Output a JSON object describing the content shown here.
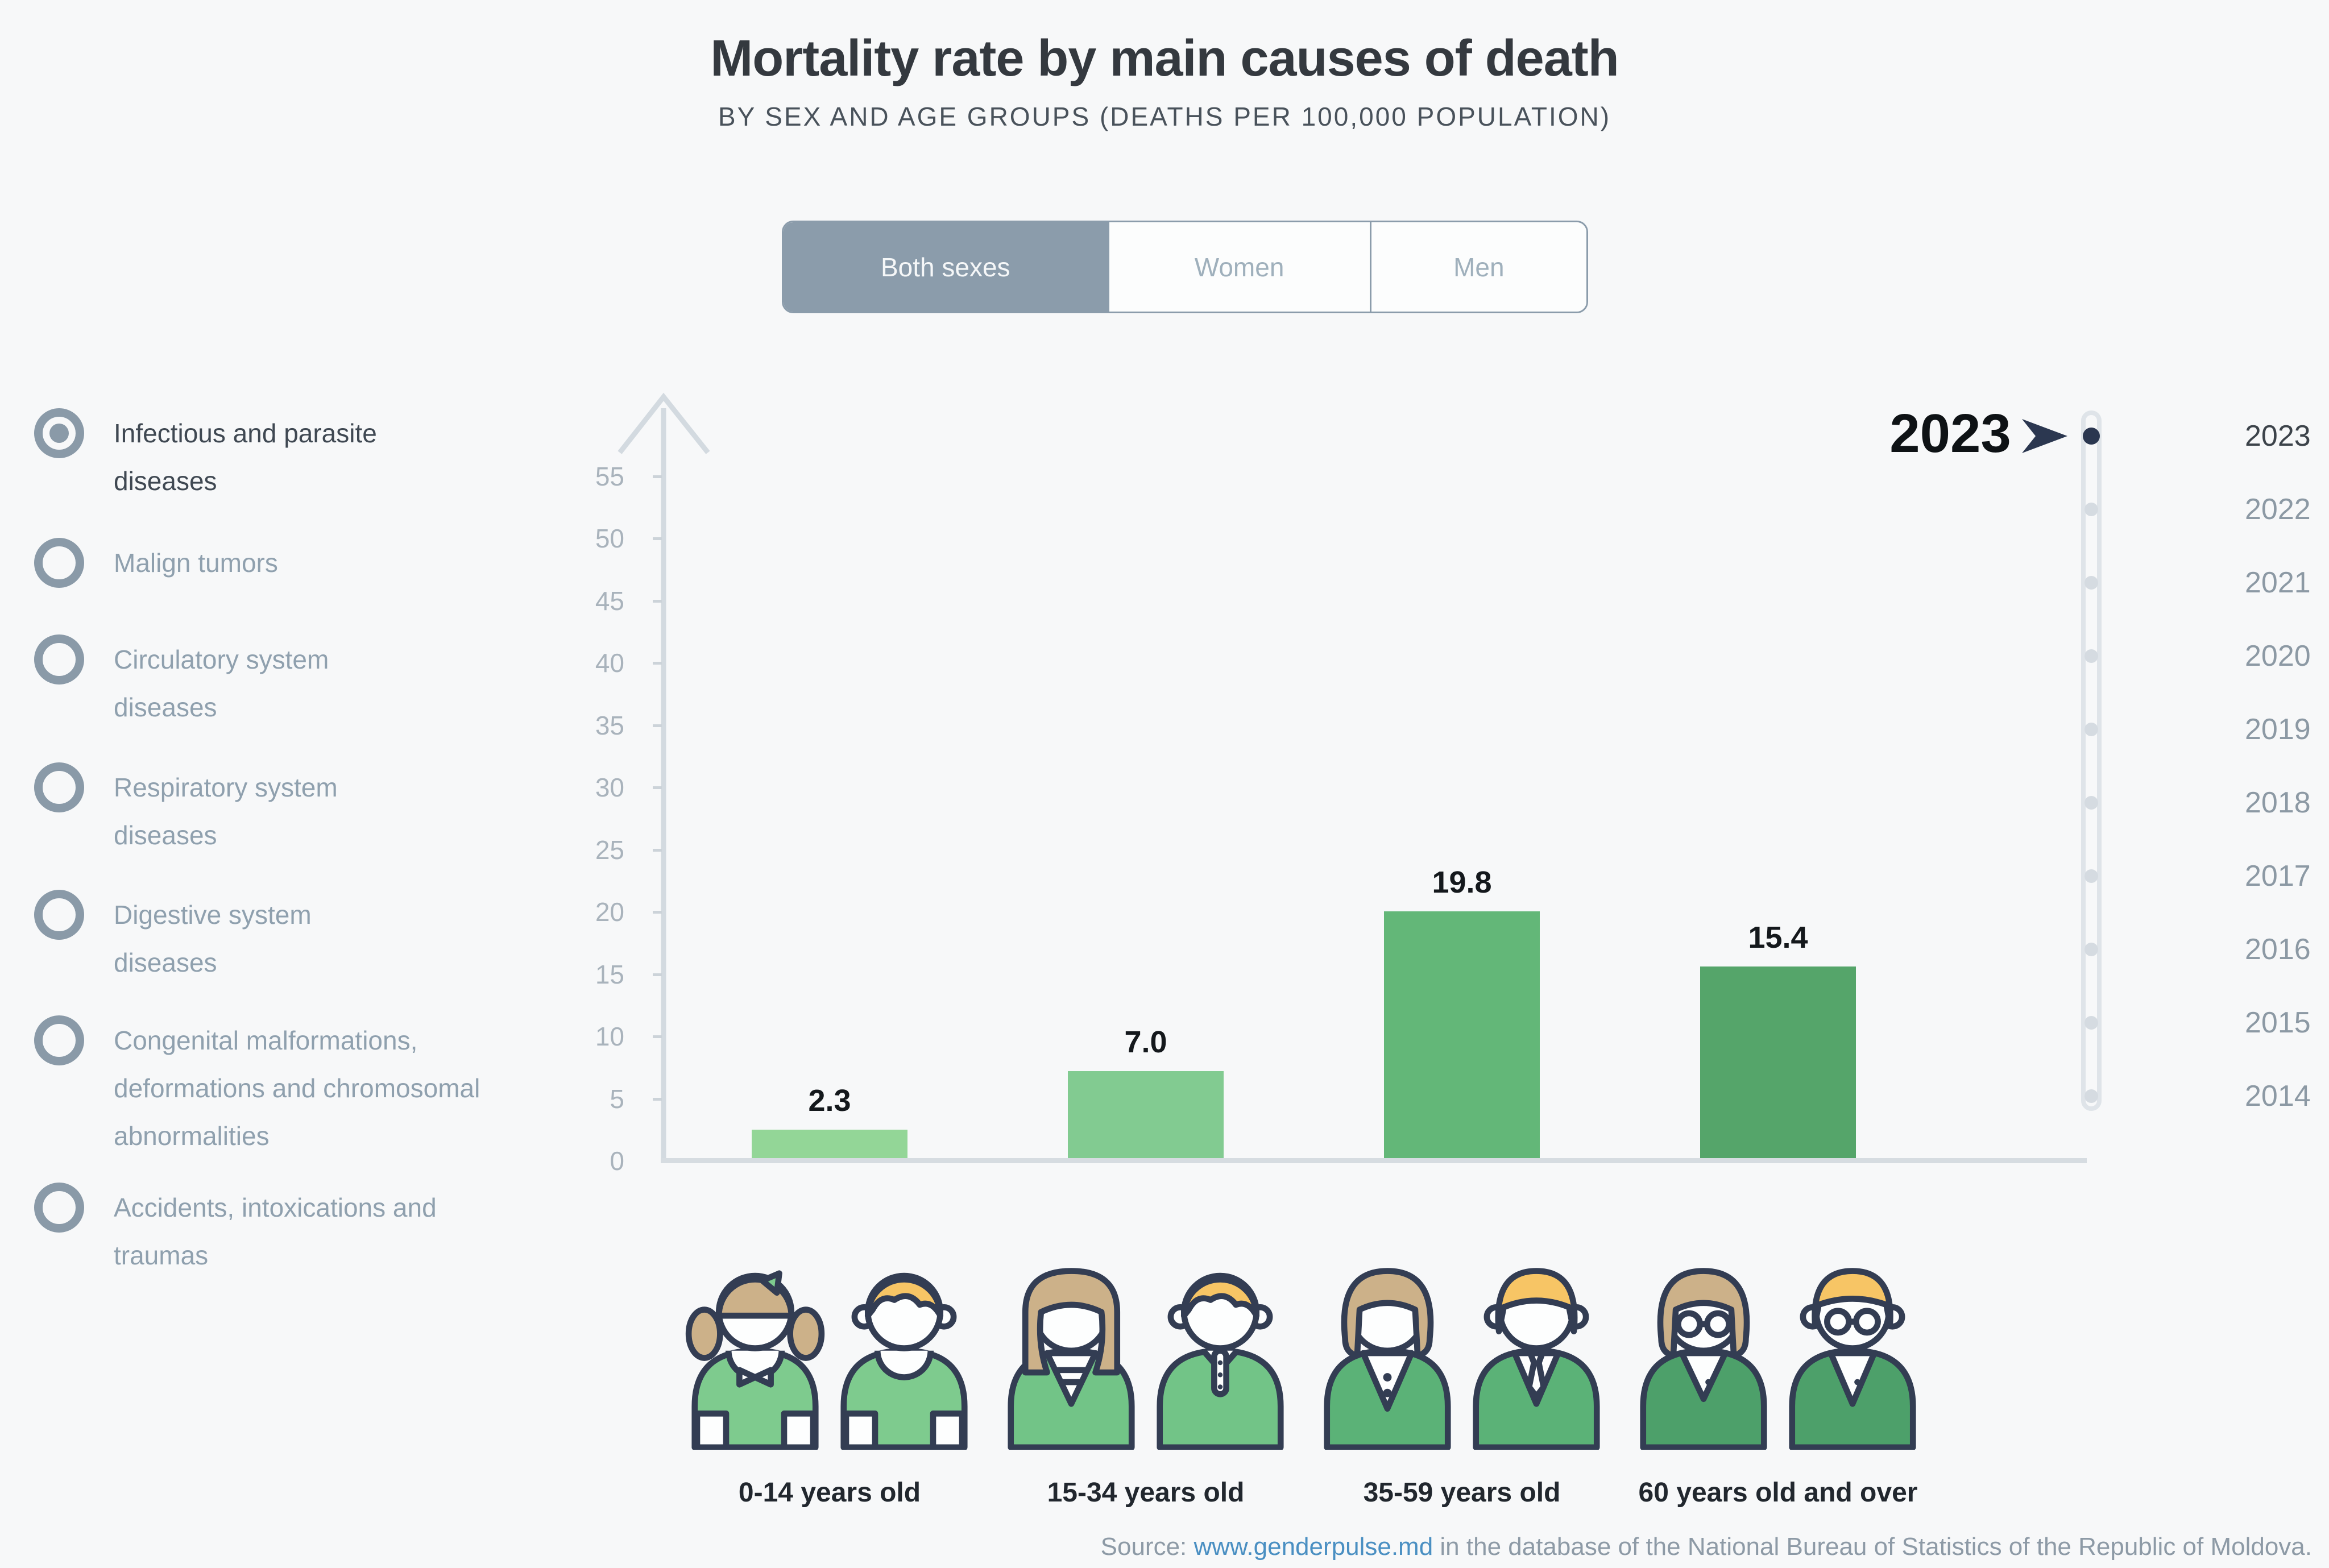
{
  "header": {
    "title": "Mortality rate by main causes of death",
    "subtitle": "BY SEX AND AGE GROUPS (DEATHS PER 100,000 POPULATION)"
  },
  "sex_tabs": {
    "tabs": [
      "Both sexes",
      "Women",
      "Men"
    ],
    "active_index": 0
  },
  "causes": {
    "selected_index": 0,
    "items": [
      "Infectious and parasite diseases",
      "Malign tumors",
      "Circulatory system diseases",
      "Respiratory system diseases",
      "Digestive system diseases",
      "Congenital malformations, deformations and chromosomal abnormalities",
      "Accidents, intoxications and traumas"
    ]
  },
  "chart_data": {
    "type": "bar",
    "title": "Mortality rate by main causes of death",
    "series_name": "Infectious and parasite diseases, both sexes, 2023",
    "categories": [
      "0-14 years old",
      "15-34 years old",
      "35-59 years old",
      "60 years old and over"
    ],
    "values": [
      2.3,
      7.0,
      19.8,
      15.4
    ],
    "value_labels": [
      "2.3",
      "7.0",
      "19.8",
      "15.4"
    ],
    "xlabel": "",
    "ylabel": "",
    "ylim": [
      0,
      55
    ],
    "ytick_step": 5,
    "ytick_labels": [
      "55",
      "50",
      "45",
      "40",
      "35",
      "30",
      "25",
      "20",
      "15",
      "10",
      "5",
      "0"
    ],
    "bar_colors": [
      "#93d697",
      "#82cb91",
      "#63b778",
      "#55a56a"
    ],
    "grid": false,
    "legend": false
  },
  "timeline": {
    "selected_index": 0,
    "selected_year": "2023",
    "years": [
      "2023",
      "2022",
      "2021",
      "2020",
      "2019",
      "2018",
      "2017",
      "2016",
      "2015",
      "2014"
    ]
  },
  "big_year": "2023",
  "source": {
    "prefix": "Source: ",
    "link_text": "www.genderpulse.md",
    "suffix": " in the database of the National Bureau of Statistics of the Republic of Moldova."
  },
  "colors": {
    "background": "#f7f8f9",
    "tab_active_bg": "#8b9cab",
    "radio": "#8a9aa8",
    "axis": "#d5dce1",
    "timeline_marker": "#2b3750",
    "link": "#4a8fc2"
  },
  "icons": {
    "axis_arrow": "up-arrow-icon",
    "year_marker": "play-arrow-icon",
    "age_groups": [
      [
        "girl-icon",
        "boy-icon"
      ],
      [
        "young-woman-icon",
        "young-man-icon"
      ],
      [
        "adult-woman-icon",
        "adult-man-icon"
      ],
      [
        "senior-woman-icon",
        "senior-man-icon"
      ]
    ]
  }
}
